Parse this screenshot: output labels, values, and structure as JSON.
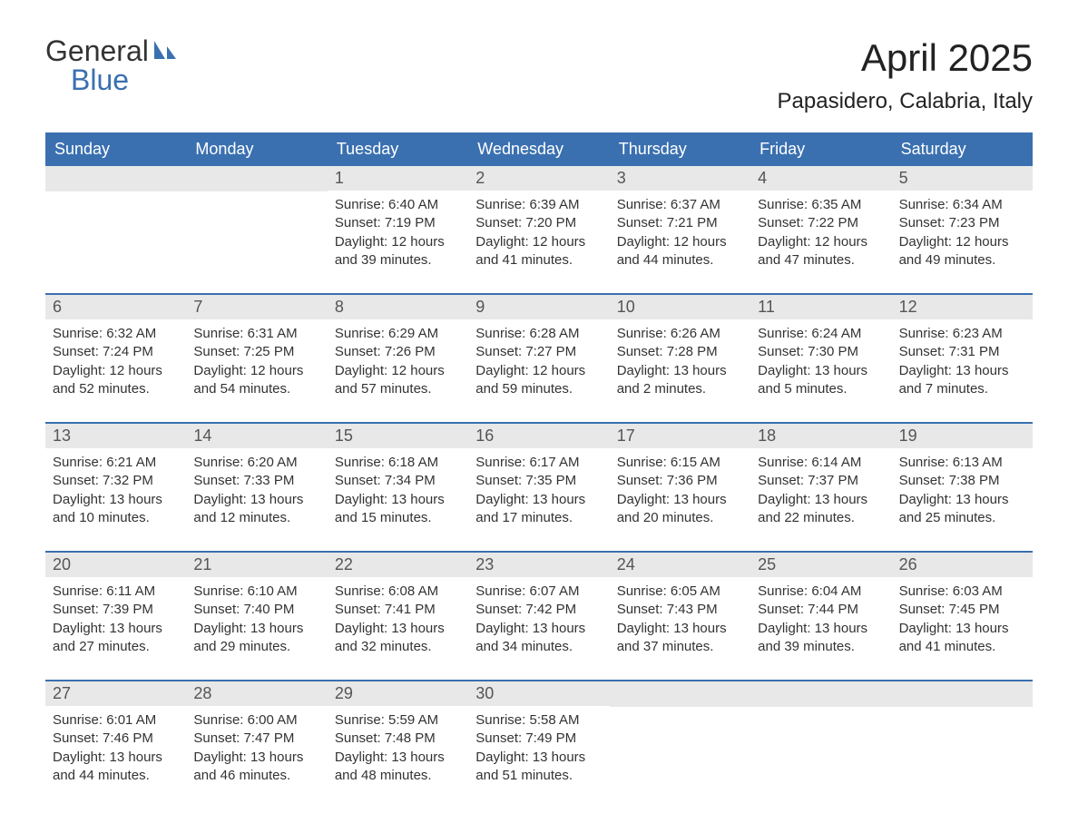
{
  "logo": {
    "text1": "General",
    "text2": "Blue",
    "sail_color": "#3a70b0"
  },
  "header": {
    "month_title": "April 2025",
    "location": "Papasidero, Calabria, Italy"
  },
  "styling": {
    "header_bg": "#3a70b0",
    "header_text": "#ffffff",
    "daynum_bg": "#e8e8e8",
    "daynum_text": "#555555",
    "body_text": "#333333",
    "week_border": "#3a70b0",
    "title_fontsize": 42,
    "location_fontsize": 24,
    "dayheader_fontsize": 18,
    "content_fontsize": 15
  },
  "day_names": [
    "Sunday",
    "Monday",
    "Tuesday",
    "Wednesday",
    "Thursday",
    "Friday",
    "Saturday"
  ],
  "weeks": [
    [
      {
        "day": "",
        "lines": []
      },
      {
        "day": "",
        "lines": []
      },
      {
        "day": "1",
        "lines": [
          "Sunrise: 6:40 AM",
          "Sunset: 7:19 PM",
          "Daylight: 12 hours and 39 minutes."
        ]
      },
      {
        "day": "2",
        "lines": [
          "Sunrise: 6:39 AM",
          "Sunset: 7:20 PM",
          "Daylight: 12 hours and 41 minutes."
        ]
      },
      {
        "day": "3",
        "lines": [
          "Sunrise: 6:37 AM",
          "Sunset: 7:21 PM",
          "Daylight: 12 hours and 44 minutes."
        ]
      },
      {
        "day": "4",
        "lines": [
          "Sunrise: 6:35 AM",
          "Sunset: 7:22 PM",
          "Daylight: 12 hours and 47 minutes."
        ]
      },
      {
        "day": "5",
        "lines": [
          "Sunrise: 6:34 AM",
          "Sunset: 7:23 PM",
          "Daylight: 12 hours and 49 minutes."
        ]
      }
    ],
    [
      {
        "day": "6",
        "lines": [
          "Sunrise: 6:32 AM",
          "Sunset: 7:24 PM",
          "Daylight: 12 hours and 52 minutes."
        ]
      },
      {
        "day": "7",
        "lines": [
          "Sunrise: 6:31 AM",
          "Sunset: 7:25 PM",
          "Daylight: 12 hours and 54 minutes."
        ]
      },
      {
        "day": "8",
        "lines": [
          "Sunrise: 6:29 AM",
          "Sunset: 7:26 PM",
          "Daylight: 12 hours and 57 minutes."
        ]
      },
      {
        "day": "9",
        "lines": [
          "Sunrise: 6:28 AM",
          "Sunset: 7:27 PM",
          "Daylight: 12 hours and 59 minutes."
        ]
      },
      {
        "day": "10",
        "lines": [
          "Sunrise: 6:26 AM",
          "Sunset: 7:28 PM",
          "Daylight: 13 hours and 2 minutes."
        ]
      },
      {
        "day": "11",
        "lines": [
          "Sunrise: 6:24 AM",
          "Sunset: 7:30 PM",
          "Daylight: 13 hours and 5 minutes."
        ]
      },
      {
        "day": "12",
        "lines": [
          "Sunrise: 6:23 AM",
          "Sunset: 7:31 PM",
          "Daylight: 13 hours and 7 minutes."
        ]
      }
    ],
    [
      {
        "day": "13",
        "lines": [
          "Sunrise: 6:21 AM",
          "Sunset: 7:32 PM",
          "Daylight: 13 hours and 10 minutes."
        ]
      },
      {
        "day": "14",
        "lines": [
          "Sunrise: 6:20 AM",
          "Sunset: 7:33 PM",
          "Daylight: 13 hours and 12 minutes."
        ]
      },
      {
        "day": "15",
        "lines": [
          "Sunrise: 6:18 AM",
          "Sunset: 7:34 PM",
          "Daylight: 13 hours and 15 minutes."
        ]
      },
      {
        "day": "16",
        "lines": [
          "Sunrise: 6:17 AM",
          "Sunset: 7:35 PM",
          "Daylight: 13 hours and 17 minutes."
        ]
      },
      {
        "day": "17",
        "lines": [
          "Sunrise: 6:15 AM",
          "Sunset: 7:36 PM",
          "Daylight: 13 hours and 20 minutes."
        ]
      },
      {
        "day": "18",
        "lines": [
          "Sunrise: 6:14 AM",
          "Sunset: 7:37 PM",
          "Daylight: 13 hours and 22 minutes."
        ]
      },
      {
        "day": "19",
        "lines": [
          "Sunrise: 6:13 AM",
          "Sunset: 7:38 PM",
          "Daylight: 13 hours and 25 minutes."
        ]
      }
    ],
    [
      {
        "day": "20",
        "lines": [
          "Sunrise: 6:11 AM",
          "Sunset: 7:39 PM",
          "Daylight: 13 hours and 27 minutes."
        ]
      },
      {
        "day": "21",
        "lines": [
          "Sunrise: 6:10 AM",
          "Sunset: 7:40 PM",
          "Daylight: 13 hours and 29 minutes."
        ]
      },
      {
        "day": "22",
        "lines": [
          "Sunrise: 6:08 AM",
          "Sunset: 7:41 PM",
          "Daylight: 13 hours and 32 minutes."
        ]
      },
      {
        "day": "23",
        "lines": [
          "Sunrise: 6:07 AM",
          "Sunset: 7:42 PM",
          "Daylight: 13 hours and 34 minutes."
        ]
      },
      {
        "day": "24",
        "lines": [
          "Sunrise: 6:05 AM",
          "Sunset: 7:43 PM",
          "Daylight: 13 hours and 37 minutes."
        ]
      },
      {
        "day": "25",
        "lines": [
          "Sunrise: 6:04 AM",
          "Sunset: 7:44 PM",
          "Daylight: 13 hours and 39 minutes."
        ]
      },
      {
        "day": "26",
        "lines": [
          "Sunrise: 6:03 AM",
          "Sunset: 7:45 PM",
          "Daylight: 13 hours and 41 minutes."
        ]
      }
    ],
    [
      {
        "day": "27",
        "lines": [
          "Sunrise: 6:01 AM",
          "Sunset: 7:46 PM",
          "Daylight: 13 hours and 44 minutes."
        ]
      },
      {
        "day": "28",
        "lines": [
          "Sunrise: 6:00 AM",
          "Sunset: 7:47 PM",
          "Daylight: 13 hours and 46 minutes."
        ]
      },
      {
        "day": "29",
        "lines": [
          "Sunrise: 5:59 AM",
          "Sunset: 7:48 PM",
          "Daylight: 13 hours and 48 minutes."
        ]
      },
      {
        "day": "30",
        "lines": [
          "Sunrise: 5:58 AM",
          "Sunset: 7:49 PM",
          "Daylight: 13 hours and 51 minutes."
        ]
      },
      {
        "day": "",
        "lines": []
      },
      {
        "day": "",
        "lines": []
      },
      {
        "day": "",
        "lines": []
      }
    ]
  ]
}
